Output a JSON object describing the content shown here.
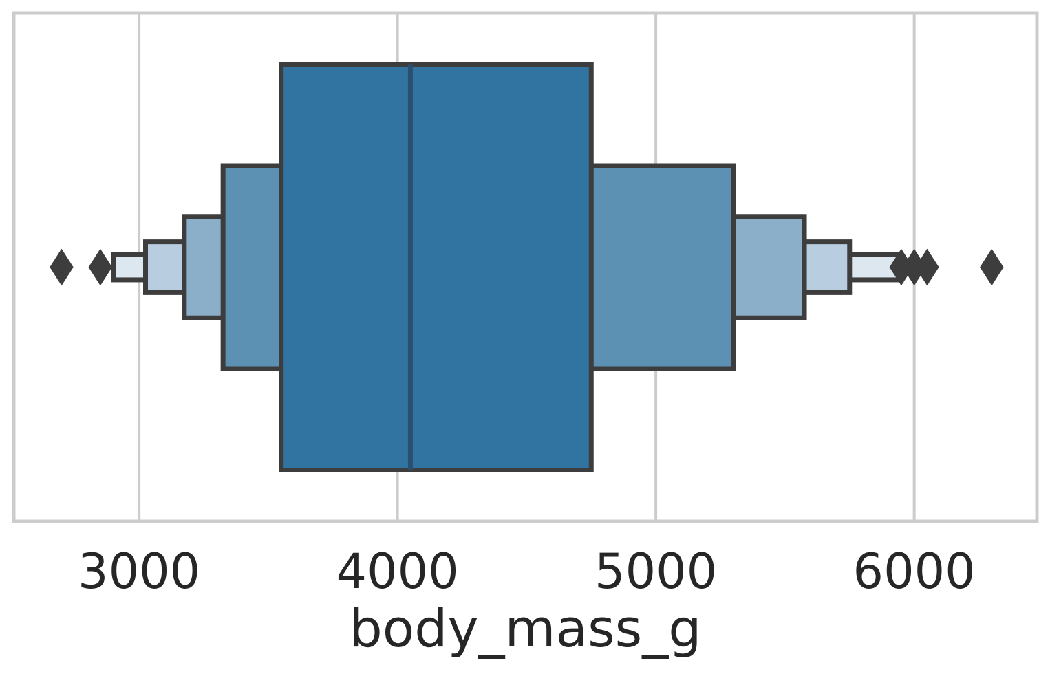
{
  "chart_data": {
    "type": "boxenplot",
    "orientation": "horizontal",
    "title": "",
    "xlabel": "body_mass_g",
    "ylabel": "",
    "xlim": [
      2515,
      6475
    ],
    "xticks": [
      3000,
      4000,
      5000,
      6000
    ],
    "xtick_labels": [
      "3000",
      "4000",
      "5000",
      "6000"
    ],
    "grid": {
      "x": true,
      "y": false
    },
    "median": 4050,
    "boxes": [
      {
        "level": 1,
        "low": 3550,
        "high": 4750,
        "color": "#3274a1"
      },
      {
        "level": 2,
        "low": 3325,
        "high": 5300,
        "color": "#5d91b4"
      },
      {
        "level": 3,
        "low": 3175,
        "high": 5575,
        "color": "#8bafc9"
      },
      {
        "level": 4,
        "low": 3025,
        "high": 5750,
        "color": "#b8cde0"
      },
      {
        "level": 5,
        "low": 2900,
        "high": 5950,
        "color": "#dde7f0"
      }
    ],
    "outliers": [
      2700,
      2850,
      5950,
      6000,
      6050,
      6300
    ],
    "colors": {
      "edge": "#3d3d3d",
      "grid": "#cccccc",
      "frame": "#cccccc",
      "text": "#262626"
    }
  }
}
